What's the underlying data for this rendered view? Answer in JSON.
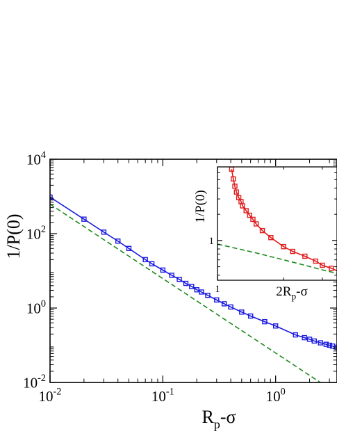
{
  "chart_data": [
    {
      "type": "line",
      "role": "main",
      "scale": "log-log",
      "xlabel": "R",
      "xlabel_sub": "p",
      "xlabel_suffix": "-σ",
      "ylabel": "1/P(0)",
      "xlim": [
        0.01,
        3.5
      ],
      "ylim": [
        0.01,
        10000
      ],
      "x_ticks": [
        {
          "v": 0.01,
          "base": "10",
          "exp": "-2"
        },
        {
          "v": 0.1,
          "base": "10",
          "exp": "-1"
        },
        {
          "v": 1,
          "base": "10",
          "exp": "0"
        }
      ],
      "y_ticks": [
        {
          "v": 0.01,
          "base": "10",
          "exp": "-2"
        },
        {
          "v": 1,
          "base": "10",
          "exp": "0"
        },
        {
          "v": 100,
          "base": "10",
          "exp": "2"
        },
        {
          "v": 10000,
          "base": "10",
          "exp": "4"
        }
      ],
      "grid": false,
      "legend": "none",
      "series": [
        {
          "kind": "markers",
          "color": "#1a1adf",
          "marker": "square",
          "x": [
            0.01,
            0.02,
            0.03,
            0.04,
            0.05,
            0.07,
            0.08,
            0.1,
            0.12,
            0.14,
            0.16,
            0.18,
            0.2,
            0.22,
            0.25,
            0.3,
            0.35,
            0.4,
            0.5,
            0.6,
            0.8,
            1.0,
            1.5,
            1.8,
            2.0,
            2.2,
            2.5,
            2.8,
            3.0,
            3.2,
            3.5
          ],
          "y": [
            960,
            245,
            110,
            63,
            40,
            20,
            15.5,
            10.5,
            7.6,
            5.9,
            4.6,
            3.8,
            3.1,
            2.7,
            2.2,
            1.65,
            1.3,
            1.07,
            0.78,
            0.61,
            0.43,
            0.33,
            0.19,
            0.16,
            0.145,
            0.13,
            0.116,
            0.106,
            0.1,
            0.095,
            0.088
          ]
        },
        {
          "kind": "line",
          "color": "#1a1adf",
          "dash": "solid",
          "x": [
            0.01,
            0.02,
            0.03,
            0.04,
            0.05,
            0.07,
            0.08,
            0.1,
            0.12,
            0.14,
            0.16,
            0.18,
            0.2,
            0.22,
            0.25,
            0.3,
            0.35,
            0.4,
            0.5,
            0.6,
            0.8,
            1.0,
            1.5,
            1.8,
            2.0,
            2.2,
            2.5,
            2.8,
            3.0,
            3.2,
            3.5
          ],
          "y": [
            960,
            245,
            110,
            63,
            40,
            20,
            15.5,
            10.5,
            7.6,
            5.9,
            4.6,
            3.8,
            3.1,
            2.7,
            2.2,
            1.65,
            1.3,
            1.07,
            0.78,
            0.61,
            0.43,
            0.33,
            0.19,
            0.16,
            0.145,
            0.13,
            0.116,
            0.106,
            0.1,
            0.095,
            0.088
          ]
        },
        {
          "kind": "line",
          "color": "#1e8a1e",
          "dash": "dashed",
          "x": [
            0.01,
            0.1,
            1.0,
            3.5
          ],
          "y": [
            620,
            6.2,
            0.062,
            0.00506
          ]
        }
      ]
    },
    {
      "type": "line",
      "role": "inset",
      "scale": "log-log",
      "xlabel": "2R",
      "xlabel_sub": "p",
      "xlabel_suffix": "-σ",
      "ylabel": "1/P(0)",
      "xlim": [
        1,
        3.5
      ],
      "ylim": [
        0.35,
        7
      ],
      "x_ticks": [
        {
          "v": 1,
          "label": "1"
        }
      ],
      "y_ticks": [
        {
          "v": 1,
          "label": "1"
        }
      ],
      "grid": false,
      "legend": "none",
      "series": [
        {
          "kind": "markers",
          "color": "#e01a1a",
          "marker": "square",
          "x": [
            1.16,
            1.18,
            1.2,
            1.22,
            1.25,
            1.28,
            1.3,
            1.35,
            1.4,
            1.45,
            1.5,
            1.6,
            1.75,
            2.0,
            2.2,
            2.5,
            2.8,
            3.0,
            3.3
          ],
          "y": [
            6.6,
            5.1,
            4.2,
            3.6,
            3.1,
            2.8,
            2.5,
            2.2,
            1.95,
            1.75,
            1.55,
            1.3,
            1.08,
            0.85,
            0.75,
            0.66,
            0.58,
            0.52,
            0.48
          ]
        },
        {
          "kind": "line",
          "color": "#e01a1a",
          "dash": "solid",
          "x": [
            1.16,
            1.18,
            1.2,
            1.22,
            1.25,
            1.28,
            1.3,
            1.35,
            1.4,
            1.45,
            1.5,
            1.6,
            1.75,
            2.0,
            2.2,
            2.5,
            2.8,
            3.0,
            3.3,
            3.5
          ],
          "y": [
            6.6,
            5.1,
            4.2,
            3.6,
            3.1,
            2.8,
            2.5,
            2.2,
            1.95,
            1.75,
            1.55,
            1.3,
            1.08,
            0.85,
            0.75,
            0.66,
            0.58,
            0.52,
            0.48,
            0.45
          ]
        },
        {
          "kind": "line",
          "color": "#1e8a1e",
          "dash": "dashed",
          "x": [
            1.0,
            1.5,
            2.0,
            2.5,
            3.0,
            3.5
          ],
          "y": [
            0.91,
            0.72,
            0.6,
            0.52,
            0.46,
            0.42
          ]
        }
      ]
    }
  ]
}
